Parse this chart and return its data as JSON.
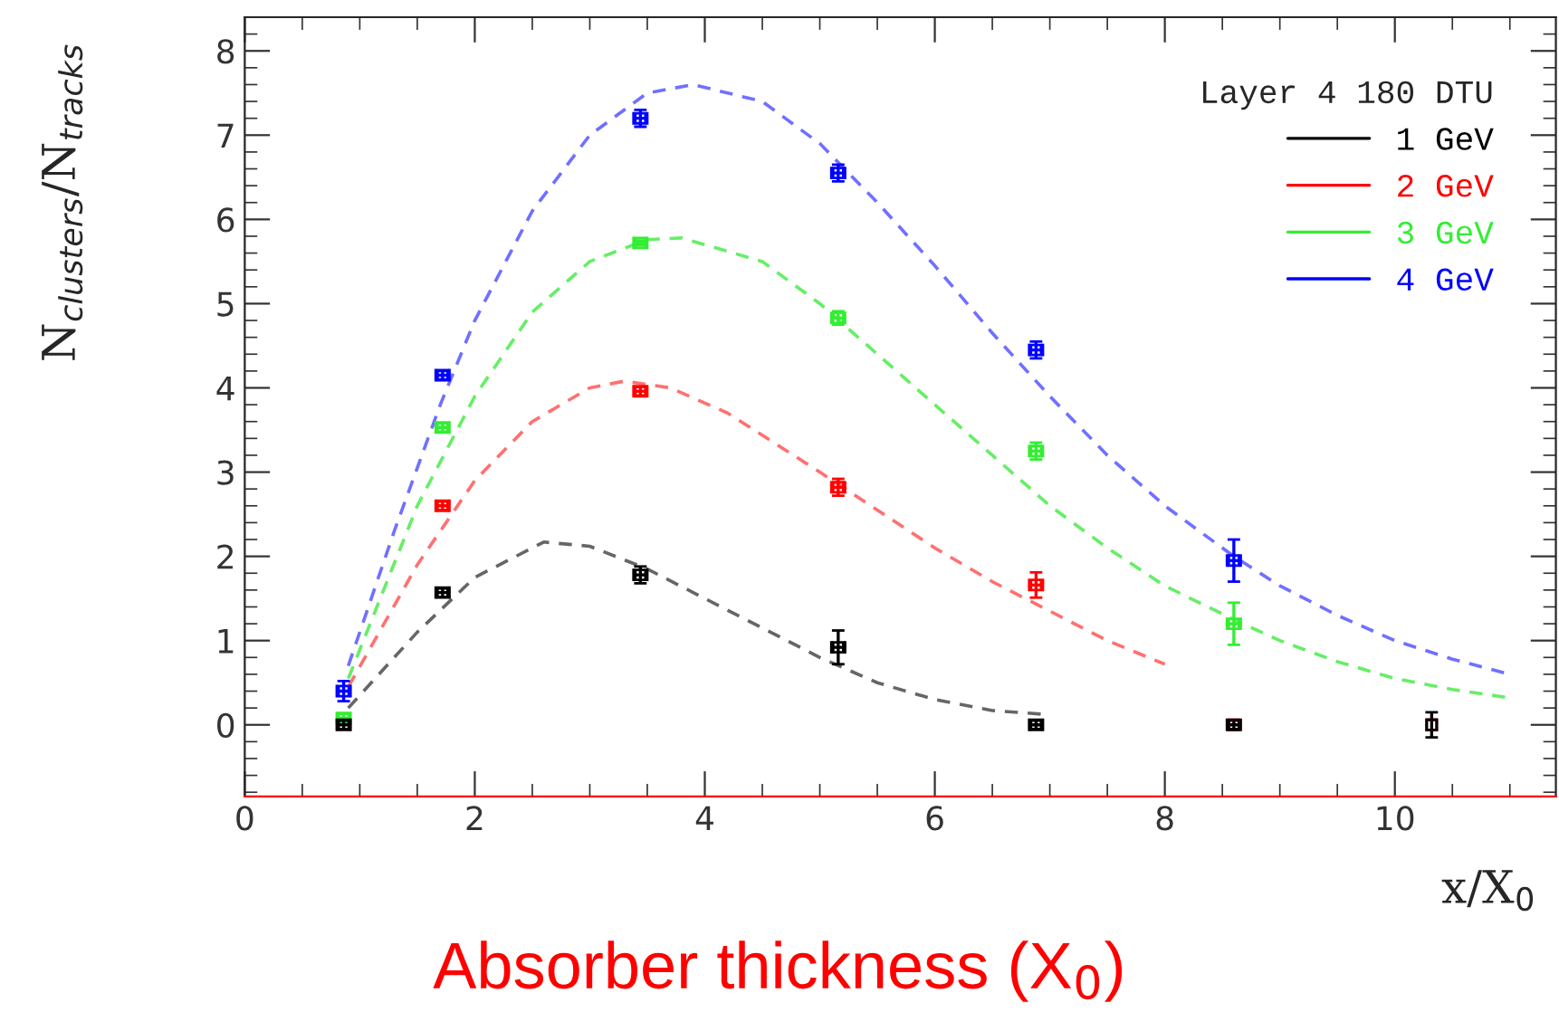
{
  "chart_data": {
    "type": "scatter",
    "xlabel": "Absorber thickness (X$_{0}$)",
    "ylabel": "N$_{clusters}$/N$_{tracks}$",
    "legend_title": "Layer 4 180 DTU",
    "annotations": [
      "x/X$_{0}$"
    ],
    "xlim": [
      0,
      11.4
    ],
    "ylim": [
      -0.85,
      8.4
    ],
    "xticks": [
      0,
      2,
      4,
      6,
      8,
      10
    ],
    "yticks": [
      0,
      1,
      2,
      3,
      4,
      5,
      6,
      7,
      8
    ],
    "legend": "top right",
    "grid": false,
    "series": [
      {
        "name": "1 GeV",
        "color": "#000000",
        "marker": "square",
        "x": [
          0.86,
          1.72,
          3.44,
          5.16,
          6.88,
          8.6,
          10.32
        ],
        "values": [
          0.0,
          1.57,
          1.78,
          0.92,
          0.0,
          0.0,
          0.0
        ],
        "errors": [
          0.05,
          0.05,
          0.1,
          0.2,
          0.05,
          0.05,
          0.15
        ],
        "xerrors": [
          0.06,
          0.06,
          0.06,
          0.06,
          0.06,
          0.06,
          null
        ]
      },
      {
        "name": "2 GeV",
        "color": "#ff0000",
        "marker": "square",
        "x": [
          1.72,
          3.44,
          5.16,
          6.88,
          8.6,
          10.32
        ],
        "values": [
          2.6,
          3.96,
          2.82,
          1.66,
          0.0,
          0.0
        ],
        "errors": [
          0.05,
          0.05,
          0.1,
          0.15,
          null,
          null
        ],
        "xerrors": [
          0.06,
          0.06,
          0.06,
          0.06,
          null,
          null
        ]
      },
      {
        "name": "3 GeV",
        "color": "#33ee33",
        "marker": "square",
        "x": [
          0.86,
          1.72,
          3.44,
          5.16,
          6.88,
          8.6,
          10.32
        ],
        "values": [
          0.08,
          3.53,
          5.72,
          4.83,
          3.25,
          1.2,
          0.0
        ],
        "errors": [
          0.05,
          0.05,
          0.03,
          0.08,
          0.1,
          0.25,
          null
        ],
        "xerrors": [
          0.06,
          0.06,
          0.06,
          0.06,
          0.06,
          0.06,
          null
        ]
      },
      {
        "name": "4 GeV",
        "color": "#0000ff",
        "marker": "square",
        "x": [
          0.86,
          1.72,
          3.44,
          5.16,
          6.88,
          8.6,
          10.32
        ],
        "values": [
          0.4,
          4.15,
          7.2,
          6.55,
          4.45,
          1.95,
          0.0
        ],
        "errors": [
          0.12,
          0.05,
          0.1,
          0.1,
          0.1,
          0.25,
          null
        ],
        "xerrors": [
          0.06,
          0.06,
          0.06,
          0.06,
          0.06,
          0.06,
          null
        ]
      },
      {
        "type": "line",
        "line_style": "dashed",
        "color": "#666666",
        "x": [
          0.9,
          1.5,
          2.0,
          2.6,
          3.0,
          3.5,
          4.0,
          4.5,
          5.0,
          5.5,
          6.0,
          6.5,
          7.0
        ],
        "values": [
          0.2,
          1.1,
          1.75,
          2.17,
          2.12,
          1.85,
          1.5,
          1.15,
          0.8,
          0.5,
          0.3,
          0.17,
          0.12
        ]
      },
      {
        "type": "line",
        "line_style": "dashed",
        "color": "#ff7070",
        "x": [
          0.9,
          1.5,
          2.0,
          2.5,
          3.0,
          3.3,
          3.7,
          4.2,
          5.0,
          5.5,
          6.0,
          6.5,
          7.0,
          7.5,
          8.0
        ],
        "values": [
          0.45,
          1.9,
          2.9,
          3.6,
          4.0,
          4.08,
          4.0,
          3.7,
          3.0,
          2.55,
          2.1,
          1.7,
          1.35,
          1.0,
          0.72
        ]
      },
      {
        "type": "line",
        "line_style": "dashed",
        "color": "#66ee66",
        "x": [
          0.9,
          1.5,
          2.0,
          2.5,
          3.0,
          3.5,
          3.8,
          4.5,
          5.0,
          5.5,
          6.0,
          6.5,
          7.0,
          7.5,
          8.0,
          8.6,
          9.0,
          9.5,
          10.0,
          10.5,
          11.0
        ],
        "values": [
          0.55,
          2.6,
          3.9,
          4.9,
          5.5,
          5.76,
          5.78,
          5.5,
          5.0,
          4.4,
          3.8,
          3.2,
          2.6,
          2.1,
          1.65,
          1.25,
          1.0,
          0.75,
          0.55,
          0.42,
          0.32
        ]
      },
      {
        "type": "line",
        "line_style": "dashed",
        "color": "#7070ff",
        "x": [
          0.9,
          1.3,
          1.7,
          2.0,
          2.5,
          3.0,
          3.5,
          3.9,
          4.5,
          5.0,
          5.5,
          6.0,
          6.5,
          7.0,
          7.5,
          8.0,
          8.6,
          9.0,
          9.5,
          10.0,
          10.5,
          11.0
        ],
        "values": [
          0.7,
          2.3,
          3.8,
          4.8,
          6.1,
          7.0,
          7.5,
          7.6,
          7.4,
          6.9,
          6.2,
          5.45,
          4.65,
          3.9,
          3.2,
          2.6,
          2.0,
          1.65,
          1.3,
          1.0,
          0.78,
          0.6
        ]
      }
    ]
  }
}
